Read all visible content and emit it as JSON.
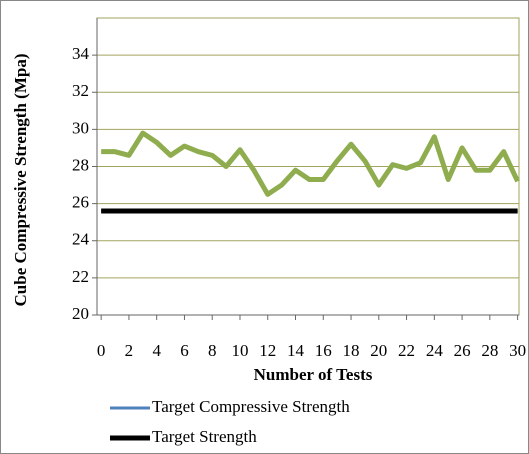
{
  "chart_data": {
    "type": "line",
    "x_label": "Number of Tests",
    "y_label": "Cube Compressive Strength (Mpa)",
    "x": [
      0,
      1,
      2,
      3,
      4,
      5,
      6,
      7,
      8,
      9,
      10,
      11,
      12,
      13,
      14,
      15,
      16,
      17,
      18,
      19,
      20,
      21,
      22,
      23,
      24,
      25,
      26,
      27,
      28,
      29,
      30
    ],
    "series": [
      {
        "color": "#8fad4e",
        "values": [
          28.8,
          28.8,
          28.6,
          29.8,
          29.3,
          28.6,
          29.1,
          28.8,
          28.6,
          28.0,
          28.9,
          27.8,
          26.5,
          27.0,
          27.8,
          27.3,
          27.3,
          28.3,
          29.2,
          28.3,
          27.0,
          28.1,
          27.9,
          28.2,
          29.6,
          27.3,
          29.0,
          27.8,
          27.8,
          28.8,
          27.2
        ]
      },
      {
        "name": "Target Compressive Strength",
        "color": "#4f81bd",
        "values": [
          25.6,
          25.6,
          25.6,
          25.6,
          25.6,
          25.6,
          25.6,
          25.6,
          25.6,
          25.6,
          25.6,
          25.6,
          25.6,
          25.6,
          25.6,
          25.6,
          25.6,
          25.6,
          25.6,
          25.6,
          25.6,
          25.6,
          25.6,
          25.6,
          25.6,
          25.6,
          25.6,
          25.6,
          25.6,
          25.6,
          25.6
        ]
      },
      {
        "name": "Target Strength",
        "color": "#000000",
        "values": [
          25.6,
          25.6,
          25.6,
          25.6,
          25.6,
          25.6,
          25.6,
          25.6,
          25.6,
          25.6,
          25.6,
          25.6,
          25.6,
          25.6,
          25.6,
          25.6,
          25.6,
          25.6,
          25.6,
          25.6,
          25.6,
          25.6,
          25.6,
          25.6,
          25.6,
          25.6,
          25.6,
          25.6,
          25.6,
          25.6,
          25.6
        ]
      }
    ],
    "xlim": [
      -0.3,
      30.1
    ],
    "xticks": [
      0,
      2,
      4,
      6,
      8,
      10,
      12,
      14,
      16,
      18,
      20,
      22,
      24,
      26,
      28,
      30
    ],
    "ylim": [
      20,
      36
    ],
    "yticks": [
      20,
      22,
      24,
      26,
      28,
      30,
      32,
      34
    ],
    "grid": true,
    "legend": "bottom"
  }
}
